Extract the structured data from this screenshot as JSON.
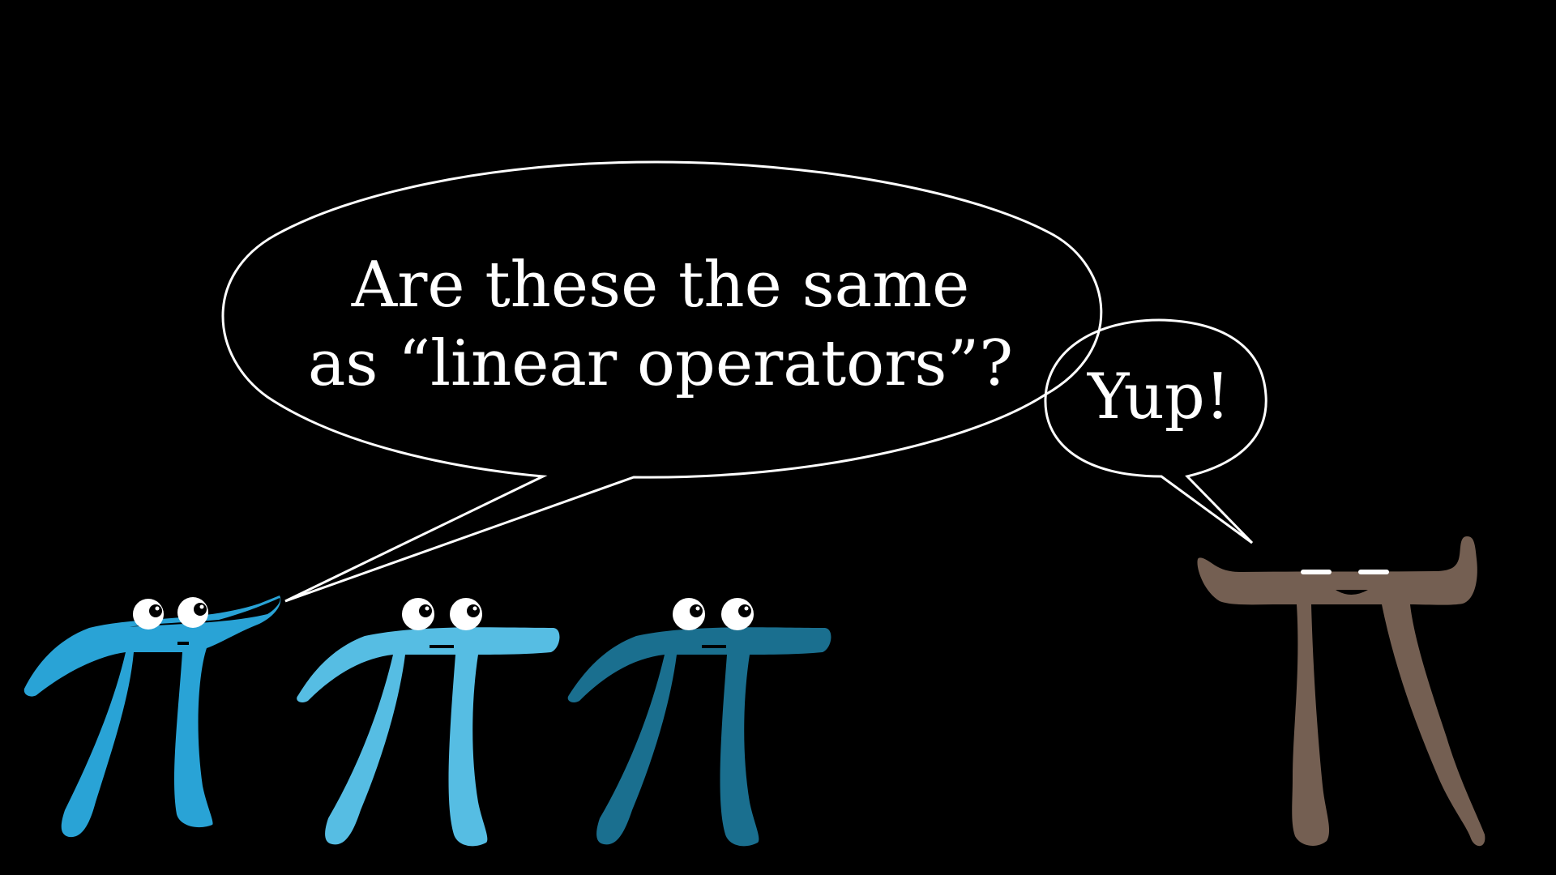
{
  "scene": {
    "background_color": "#000000"
  },
  "speech_bubble_left": {
    "line1": "Are these the same",
    "line2": "as “linear operators”?",
    "outline_color": "#ffffff"
  },
  "speech_bubble_right": {
    "text": "Yup!",
    "outline_color": "#ffffff"
  },
  "characters": [
    {
      "name": "blue-pi-1",
      "color": "#29a3d6"
    },
    {
      "name": "blue-pi-2",
      "color": "#56bde3"
    },
    {
      "name": "blue-pi-3",
      "color": "#1a6f8f"
    },
    {
      "name": "brown-pi",
      "color": "#745f52"
    }
  ]
}
